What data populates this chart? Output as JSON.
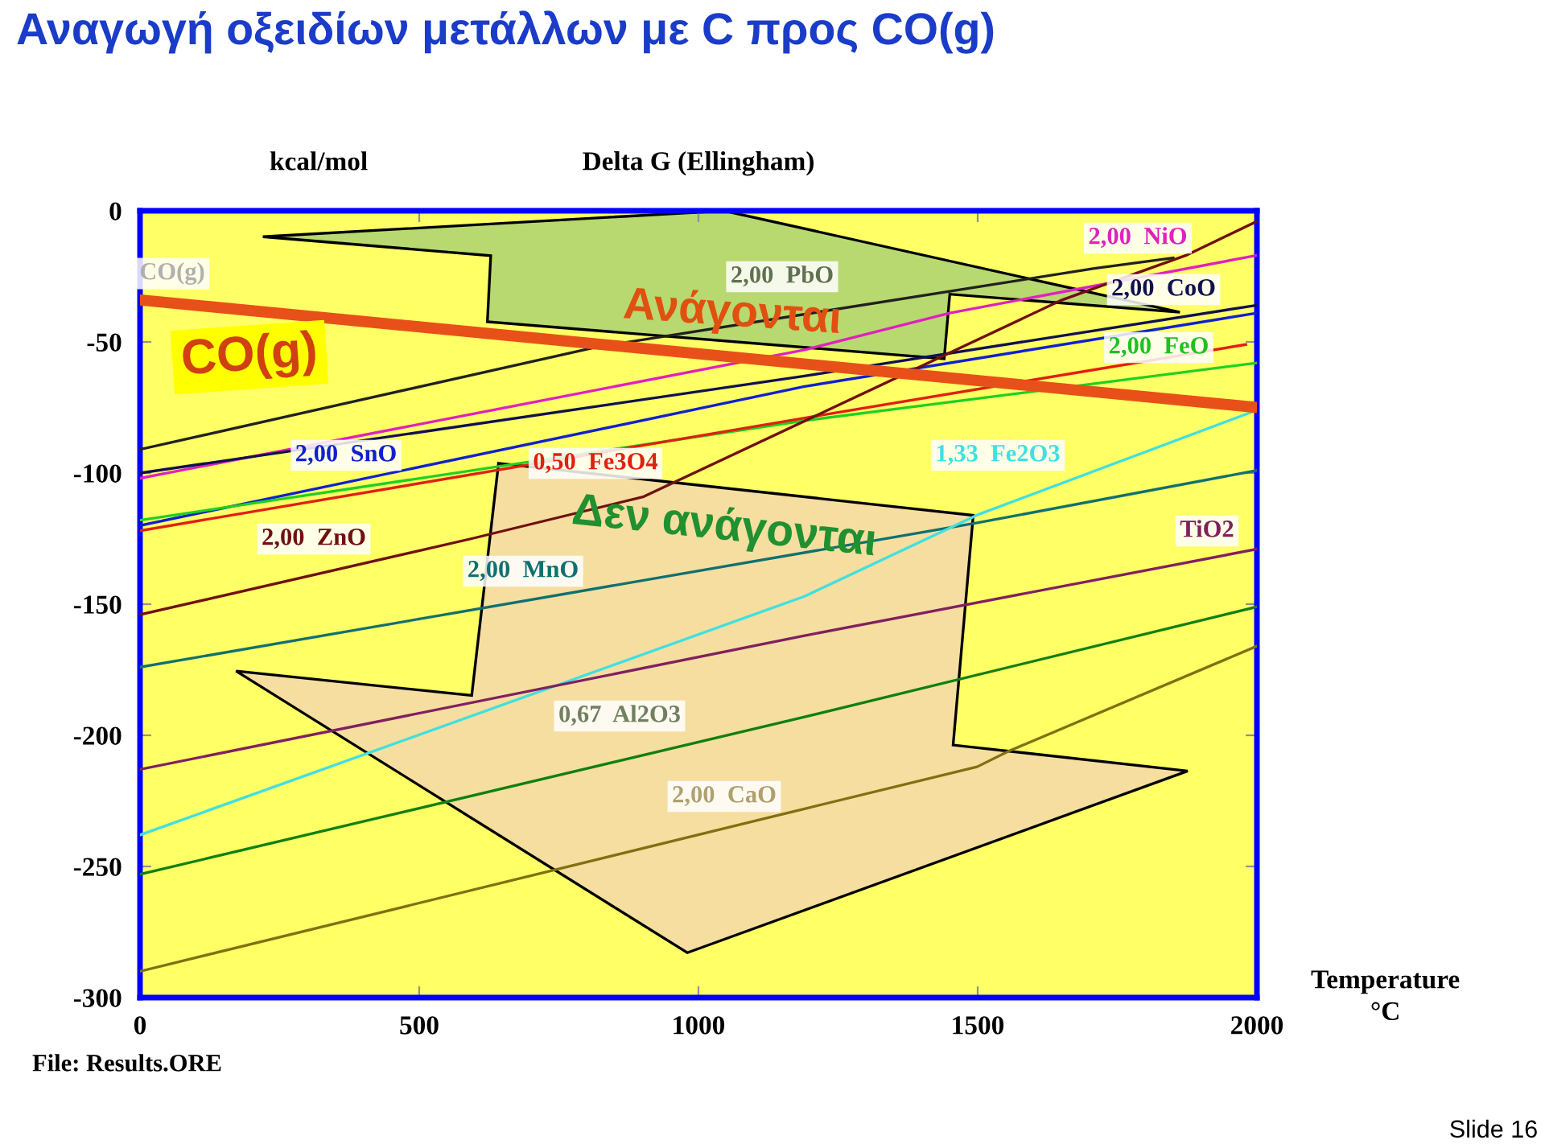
{
  "chart_data": {
    "type": "line",
    "title": "Αναγωγή οξειδίων μετάλλων με C προς CO(g)",
    "subtitle": "Delta G (Ellingham)",
    "ylabel": "kcal/mol",
    "xlabel": "Temperature\n°C",
    "xlim": [
      0,
      2000
    ],
    "ylim": [
      -300,
      0
    ],
    "xticks": [
      0,
      500,
      1000,
      1500,
      2000
    ],
    "yticks": [
      0,
      -50,
      -100,
      -150,
      -200,
      -250,
      -300
    ],
    "grid": false,
    "marker": "none",
    "line_style": "solid",
    "series": [
      {
        "color": "#e8501a",
        "x": [
          0,
          2000
        ],
        "values": [
          -34,
          -75
        ]
      },
      {
        "color": "#e020c0",
        "x": [
          0,
          1190,
          1450,
          2000
        ],
        "values": [
          -102,
          -53,
          -39,
          -17
        ]
      },
      {
        "color": "#202020",
        "x": [
          0,
          816,
          1709,
          1850
        ],
        "values": [
          -91,
          -52,
          -22,
          -18
        ]
      },
      {
        "color": "#101050",
        "x": [
          0,
          1190,
          2000
        ],
        "values": [
          -100,
          -63,
          -36
        ]
      },
      {
        "color": "#1020d0",
        "x": [
          0,
          1190,
          2000
        ],
        "values": [
          -120,
          -67,
          -39
        ]
      },
      {
        "color": "#20d020",
        "x": [
          0,
          1190,
          2000
        ],
        "values": [
          -118,
          -80,
          -58
        ]
      },
      {
        "color": "#e02010",
        "x": [
          0,
          1190,
          1980
        ],
        "values": [
          -122,
          -79,
          -51
        ]
      },
      {
        "color": "#701010",
        "x": [
          0,
          594,
          902,
          1651,
          1873,
          2000
        ],
        "values": [
          -154,
          -125,
          -109,
          -34,
          -17,
          -4
        ]
      },
      {
        "color": "#107070",
        "x": [
          0,
          1499,
          2000
        ],
        "values": [
          -174,
          -119,
          -99
        ]
      },
      {
        "color": "#40e0e0",
        "x": [
          0,
          1190,
          1499,
          2000
        ],
        "values": [
          -238,
          -147,
          -116,
          -76
        ]
      },
      {
        "color": "#802060",
        "x": [
          0,
          1190,
          2000
        ],
        "values": [
          -213,
          -162,
          -129
        ]
      },
      {
        "color": "#108010",
        "x": [
          0,
          1190,
          2000
        ],
        "values": [
          -253,
          -193,
          -151
        ]
      },
      {
        "color": "#807010",
        "x": [
          0,
          1190,
          1499,
          1556,
          2000
        ],
        "values": [
          -290,
          -228,
          -212,
          -206,
          -166
        ]
      }
    ],
    "annotations": [
      "CO(g)",
      "2,00  NiO",
      "2,00  PbO",
      "2,00  CoO",
      "2,00  SnO",
      "2,00  FeO",
      "0,50  Fe3O4",
      "2,00  ZnO",
      "2,00  MnO",
      "1,33  Fe2O3",
      "TiO2",
      "0,67  Al2O3",
      "2,00  CaO",
      "CO(g)",
      "Ανάγονται",
      "Δεν ανάγονται",
      "File: Results.ORE",
      "Slide 16"
    ]
  }
}
